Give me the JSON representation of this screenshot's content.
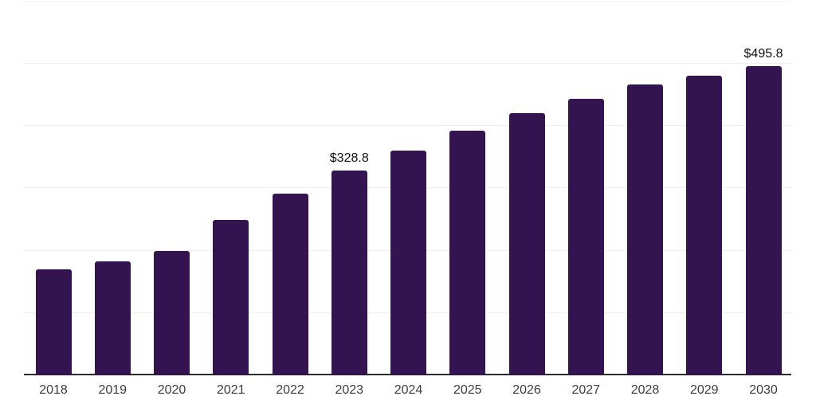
{
  "chart_data": {
    "type": "bar",
    "categories": [
      "2018",
      "2019",
      "2020",
      "2021",
      "2022",
      "2023",
      "2024",
      "2025",
      "2026",
      "2027",
      "2028",
      "2029",
      "2030"
    ],
    "values": [
      170,
      183,
      200,
      249,
      291,
      328.8,
      361,
      392,
      420,
      444,
      466,
      481,
      495.8
    ],
    "value_labels": [
      "",
      "",
      "",
      "",
      "",
      "$328.8",
      "",
      "",
      "",
      "",
      "",
      "",
      "$495.8"
    ],
    "title": "",
    "xlabel": "",
    "ylabel": "",
    "ylim": [
      0,
      600
    ],
    "gridline_interval": 100,
    "grid": true,
    "y_tick_labels_visible": false,
    "legend": "none",
    "colors": {
      "bar": "#331450",
      "axis_line": "#2d2d2d",
      "gridline": "#f0f0f0",
      "tick_label": "#3d3d3d",
      "data_label": "#111111",
      "background": "#ffffff"
    }
  }
}
